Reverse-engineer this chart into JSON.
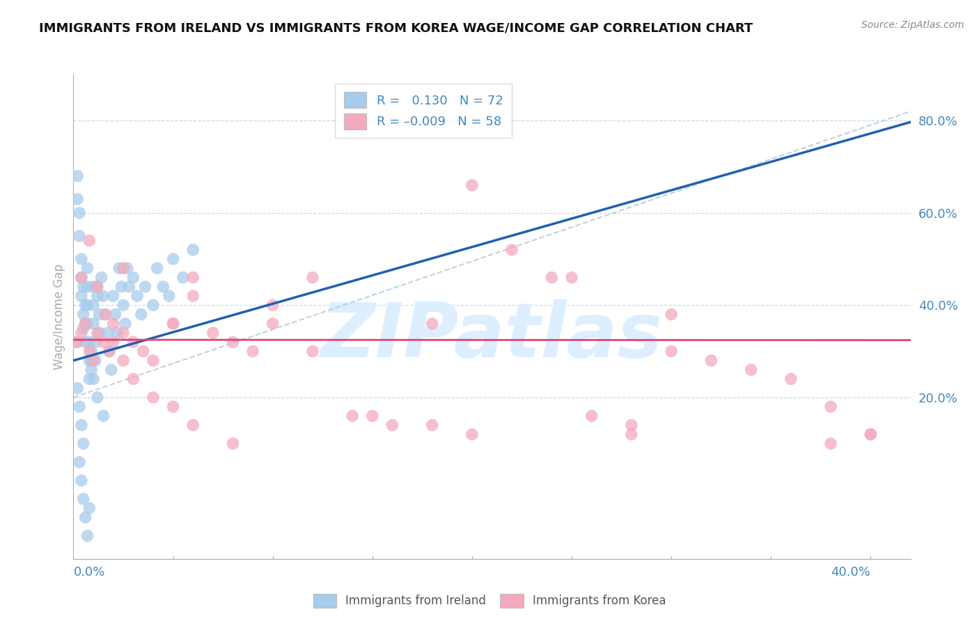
{
  "title": "IMMIGRANTS FROM IRELAND VS IMMIGRANTS FROM KOREA WAGE/INCOME GAP CORRELATION CHART",
  "source": "Source: ZipAtlas.com",
  "ylabel": "Wage/Income Gap",
  "xlim": [
    0.0,
    0.42
  ],
  "ylim": [
    -0.15,
    0.9
  ],
  "yticks": [
    0.2,
    0.4,
    0.6,
    0.8
  ],
  "ytick_labels": [
    "20.0%",
    "40.0%",
    "60.0%",
    "80.0%"
  ],
  "xtick_left": "0.0%",
  "xtick_right": "40.0%",
  "ireland_R": 0.13,
  "ireland_N": 72,
  "korea_R": -0.009,
  "korea_N": 58,
  "ireland_dot_color": "#A8CCEC",
  "korea_dot_color": "#F4AABE",
  "ireland_line_color": "#2060B0",
  "korea_line_color": "#E84070",
  "diagonal_color": "#B8CEDD",
  "grid_color": "#C8DCF0",
  "bg_color": "#FFFFFF",
  "title_color": "#111111",
  "axis_label_color": "#4488BB",
  "source_color": "#888888",
  "watermark_text": "ZIPatlas",
  "watermark_color": "#DDEEFF",
  "legend_text_color": "#4488BB",
  "bottom_legend_color": "#555555",
  "ireland_x": [
    0.001,
    0.002,
    0.002,
    0.003,
    0.003,
    0.004,
    0.004,
    0.004,
    0.005,
    0.005,
    0.005,
    0.006,
    0.006,
    0.006,
    0.007,
    0.007,
    0.007,
    0.007,
    0.008,
    0.008,
    0.008,
    0.009,
    0.009,
    0.01,
    0.01,
    0.01,
    0.011,
    0.011,
    0.012,
    0.012,
    0.013,
    0.013,
    0.014,
    0.015,
    0.016,
    0.017,
    0.018,
    0.019,
    0.02,
    0.021,
    0.022,
    0.023,
    0.024,
    0.025,
    0.026,
    0.027,
    0.028,
    0.03,
    0.032,
    0.034,
    0.036,
    0.04,
    0.042,
    0.045,
    0.048,
    0.05,
    0.055,
    0.06,
    0.002,
    0.003,
    0.004,
    0.005,
    0.003,
    0.004,
    0.005,
    0.006,
    0.007,
    0.008,
    0.009,
    0.01,
    0.012,
    0.015
  ],
  "ireland_y": [
    0.32,
    0.68,
    0.63,
    0.6,
    0.55,
    0.5,
    0.46,
    0.42,
    0.38,
    0.35,
    0.44,
    0.4,
    0.36,
    0.32,
    0.48,
    0.44,
    0.4,
    0.36,
    0.32,
    0.28,
    0.24,
    0.3,
    0.26,
    0.44,
    0.4,
    0.36,
    0.32,
    0.28,
    0.44,
    0.42,
    0.38,
    0.34,
    0.46,
    0.42,
    0.38,
    0.34,
    0.3,
    0.26,
    0.42,
    0.38,
    0.34,
    0.48,
    0.44,
    0.4,
    0.36,
    0.48,
    0.44,
    0.46,
    0.42,
    0.38,
    0.44,
    0.4,
    0.48,
    0.44,
    0.42,
    0.5,
    0.46,
    0.52,
    0.22,
    0.18,
    0.14,
    0.1,
    0.06,
    0.02,
    -0.02,
    -0.06,
    -0.1,
    -0.04,
    0.28,
    0.24,
    0.2,
    0.16
  ],
  "korea_x": [
    0.002,
    0.004,
    0.006,
    0.008,
    0.01,
    0.012,
    0.015,
    0.018,
    0.02,
    0.025,
    0.03,
    0.035,
    0.04,
    0.05,
    0.06,
    0.07,
    0.08,
    0.09,
    0.1,
    0.12,
    0.14,
    0.16,
    0.18,
    0.2,
    0.22,
    0.24,
    0.26,
    0.28,
    0.3,
    0.32,
    0.34,
    0.36,
    0.38,
    0.4,
    0.004,
    0.008,
    0.012,
    0.016,
    0.02,
    0.025,
    0.03,
    0.04,
    0.05,
    0.06,
    0.08,
    0.1,
    0.15,
    0.2,
    0.25,
    0.3,
    0.025,
    0.05,
    0.18,
    0.28,
    0.38,
    0.06,
    0.12,
    0.4
  ],
  "korea_y": [
    0.32,
    0.34,
    0.36,
    0.3,
    0.28,
    0.34,
    0.32,
    0.3,
    0.36,
    0.34,
    0.32,
    0.3,
    0.28,
    0.36,
    0.42,
    0.34,
    0.32,
    0.3,
    0.36,
    0.3,
    0.16,
    0.14,
    0.36,
    0.66,
    0.52,
    0.46,
    0.16,
    0.14,
    0.3,
    0.28,
    0.26,
    0.24,
    0.18,
    0.12,
    0.46,
    0.54,
    0.44,
    0.38,
    0.32,
    0.28,
    0.24,
    0.2,
    0.18,
    0.14,
    0.1,
    0.4,
    0.16,
    0.12,
    0.46,
    0.38,
    0.48,
    0.36,
    0.14,
    0.12,
    0.1,
    0.46,
    0.46,
    0.12
  ]
}
